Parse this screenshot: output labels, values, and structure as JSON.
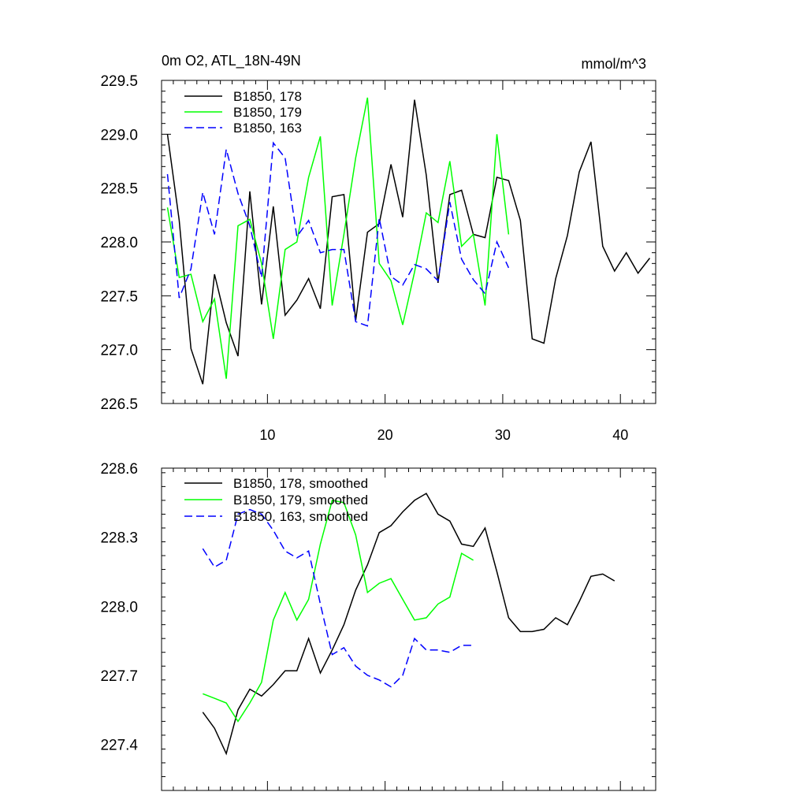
{
  "chart_data": [
    {
      "type": "line",
      "title": "0m O2, ATL_18N-49N",
      "units": "mmol/m^3",
      "xlim": [
        1,
        43
      ],
      "ylim": [
        226.5,
        229.5
      ],
      "xticks": [
        10,
        20,
        30,
        40
      ],
      "xticklabels": [
        "10",
        "20",
        "30",
        "40"
      ],
      "yticks": [
        226.5,
        227.0,
        227.5,
        228.0,
        228.5,
        229.0,
        229.5
      ],
      "yticklabels": [
        "226.5",
        "227.0",
        "227.5",
        "228.0",
        "228.5",
        "229.0",
        "229.5"
      ],
      "legend_position": "top-left",
      "series": [
        {
          "name": "B1850, 178",
          "color": "#000000",
          "dash": "solid",
          "x": [
            1.5,
            2.5,
            3.5,
            4.5,
            5.5,
            6.5,
            7.5,
            8.5,
            9.5,
            10.5,
            11.5,
            12.5,
            13.5,
            14.5,
            15.5,
            16.5,
            17.5,
            18.5,
            19.5,
            20.5,
            21.5,
            22.5,
            23.5,
            24.5,
            25.5,
            26.5,
            27.5,
            28.5,
            29.5,
            30.5,
            31.5,
            32.5,
            33.5,
            34.5,
            35.5,
            36.5,
            37.5,
            38.5,
            39.5,
            40.5,
            41.5,
            42.5
          ],
          "y": [
            229.0,
            228.2,
            227.01,
            226.68,
            227.7,
            227.25,
            226.94,
            228.47,
            227.42,
            228.33,
            227.32,
            227.46,
            227.66,
            227.38,
            228.42,
            228.44,
            227.27,
            228.09,
            228.17,
            228.72,
            228.23,
            229.32,
            228.62,
            227.62,
            228.44,
            228.48,
            228.07,
            228.04,
            228.6,
            228.57,
            228.2,
            227.1,
            227.06,
            227.66,
            228.06,
            228.65,
            228.93,
            227.96,
            227.73,
            227.9,
            227.71,
            227.85
          ]
        },
        {
          "name": "B1850, 179",
          "color": "#00ff00",
          "dash": "solid",
          "x": [
            1.5,
            2.5,
            3.5,
            4.5,
            5.5,
            6.5,
            7.5,
            8.5,
            9.5,
            10.5,
            11.5,
            12.5,
            13.5,
            14.5,
            15.5,
            16.5,
            17.5,
            18.5,
            19.5,
            20.5,
            21.5,
            22.5,
            23.5,
            24.5,
            25.5,
            26.5,
            27.5,
            28.5,
            29.5,
            30.5
          ],
          "y": [
            228.32,
            227.67,
            227.7,
            227.26,
            227.47,
            226.73,
            228.15,
            228.21,
            227.8,
            227.1,
            227.93,
            228.0,
            228.6,
            228.98,
            227.41,
            228.07,
            228.78,
            229.34,
            227.8,
            227.64,
            227.23,
            227.72,
            228.27,
            228.18,
            228.75,
            227.96,
            228.07,
            227.41,
            229.0,
            228.07
          ]
        },
        {
          "name": "B1850, 163",
          "color": "#0000ff",
          "dash": "dashed",
          "x": [
            1.5,
            2.5,
            3.5,
            4.5,
            5.5,
            6.5,
            7.5,
            8.5,
            9.5,
            10.5,
            11.5,
            12.5,
            13.5,
            14.5,
            15.5,
            16.5,
            17.5,
            18.5,
            19.5,
            20.5,
            21.5,
            22.5,
            23.5,
            24.5,
            25.5,
            26.5,
            27.5,
            28.5,
            29.5,
            30.5
          ],
          "y": [
            228.63,
            227.48,
            227.75,
            228.46,
            228.07,
            228.86,
            228.45,
            228.15,
            227.67,
            228.92,
            228.78,
            228.05,
            228.2,
            227.9,
            227.93,
            227.93,
            227.26,
            227.22,
            228.22,
            227.68,
            227.6,
            227.79,
            227.75,
            227.64,
            228.37,
            227.84,
            227.65,
            227.52,
            228.0,
            227.76
          ]
        }
      ]
    },
    {
      "type": "line",
      "title": "",
      "xlim": [
        1,
        43
      ],
      "ylim": [
        227.2,
        228.6
      ],
      "xticks": [
        10,
        20,
        30,
        40
      ],
      "xticklabels": [],
      "yticks": [
        227.4,
        227.7,
        228.0,
        228.3,
        228.6
      ],
      "yticklabels": [
        "227.4",
        "227.7",
        "228.0",
        "228.3",
        "228.6"
      ],
      "legend_position": "top-left",
      "series": [
        {
          "name": "B1850, 178, smoothed",
          "color": "#000000",
          "dash": "solid",
          "x": [
            4.5,
            5.5,
            6.5,
            7.5,
            8.5,
            9.5,
            10.5,
            11.5,
            12.5,
            13.5,
            14.5,
            15.5,
            16.5,
            17.5,
            18.5,
            19.5,
            20.5,
            21.5,
            22.5,
            23.5,
            24.5,
            25.5,
            26.5,
            27.5,
            28.5,
            29.5,
            30.5,
            31.5,
            32.5,
            33.5,
            34.5,
            35.5,
            36.5,
            37.5,
            38.5,
            39.5
          ],
          "y": [
            227.54,
            227.47,
            227.36,
            227.55,
            227.64,
            227.61,
            227.66,
            227.72,
            227.72,
            227.86,
            227.71,
            227.81,
            227.92,
            228.07,
            228.18,
            228.32,
            228.35,
            228.41,
            228.46,
            228.49,
            228.4,
            228.37,
            228.27,
            228.26,
            228.34,
            228.15,
            227.95,
            227.89,
            227.89,
            227.9,
            227.95,
            227.92,
            228.02,
            228.13,
            228.14,
            228.11
          ]
        },
        {
          "name": "B1850, 179, smoothed",
          "color": "#00ff00",
          "dash": "solid",
          "x": [
            4.5,
            5.5,
            6.5,
            7.5,
            8.5,
            9.5,
            10.5,
            11.5,
            12.5,
            13.5,
            14.5,
            15.5,
            16.5,
            17.5,
            18.5,
            19.5,
            20.5,
            21.5,
            22.5,
            23.5,
            24.5,
            25.5,
            26.5,
            27.5
          ],
          "y": [
            227.62,
            227.6,
            227.58,
            227.5,
            227.58,
            227.67,
            227.94,
            228.06,
            227.94,
            228.03,
            228.27,
            228.46,
            228.45,
            228.31,
            228.06,
            228.1,
            228.12,
            228.03,
            227.94,
            227.95,
            228.01,
            228.04,
            228.23,
            228.2
          ]
        },
        {
          "name": "B1850, 163, smoothed",
          "color": "#0000ff",
          "dash": "dashed",
          "x": [
            4.5,
            5.5,
            6.5,
            7.5,
            8.5,
            9.5,
            10.5,
            11.5,
            12.5,
            13.5,
            14.5,
            15.5,
            16.5,
            17.5,
            18.5,
            19.5,
            20.5,
            21.5,
            22.5,
            23.5,
            24.5,
            25.5,
            26.5,
            27.5
          ],
          "y": [
            228.25,
            228.17,
            228.2,
            228.4,
            228.42,
            228.4,
            228.33,
            228.24,
            228.21,
            228.24,
            228.01,
            227.79,
            227.82,
            227.74,
            227.7,
            227.68,
            227.65,
            227.7,
            227.86,
            227.81,
            227.81,
            227.8,
            227.83,
            227.83
          ]
        }
      ]
    }
  ]
}
